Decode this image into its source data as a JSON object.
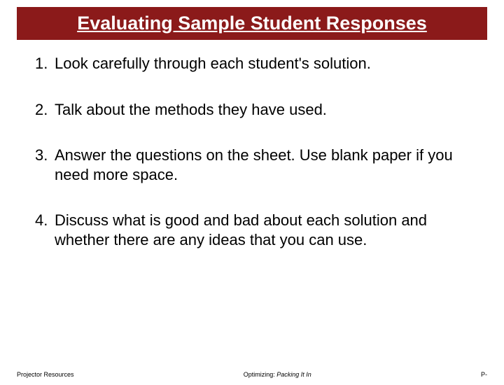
{
  "title": "Evaluating Sample Student Responses",
  "items": [
    {
      "num": "1.",
      "text": "Look carefully through each student's solution."
    },
    {
      "num": "2.",
      "text": "Talk about the methods they have used."
    },
    {
      "num": "3.",
      "text": "Answer the questions on the sheet. Use blank paper if you need more space."
    },
    {
      "num": "4.",
      "text": "Discuss what is good and bad about each solution and whether there are any ideas that you can use."
    }
  ],
  "footer": {
    "left": "Projector Resources",
    "center_prefix": "Optimizing: ",
    "center_italic": "Packing It In",
    "right": "P-"
  },
  "colors": {
    "title_bg": "#8b1a1a",
    "title_text": "#ffffff",
    "body_text": "#000000",
    "page_bg": "#ffffff"
  }
}
